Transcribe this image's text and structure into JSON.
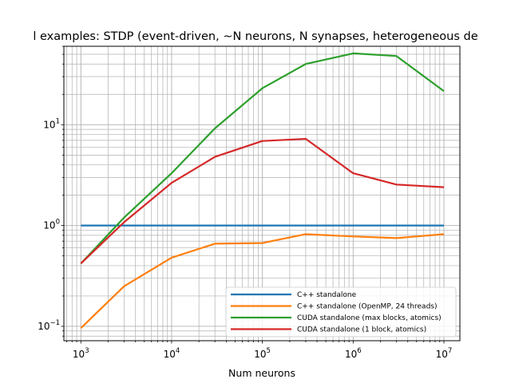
{
  "chart_data": {
    "type": "line",
    "title": "l examples: STDP (event-driven, ~N neurons, N synapses, heterogeneous de",
    "xlabel": "Num neurons",
    "ylabel": "",
    "xscale": "log",
    "yscale": "log",
    "xlim": [
      650,
      15000000
    ],
    "ylim": [
      0.072,
      60
    ],
    "grid": "on (major and minor)",
    "legend_position": "lower-right",
    "x_ticks": [
      {
        "base": "10",
        "exp": "3",
        "value": 1000
      },
      {
        "base": "10",
        "exp": "4",
        "value": 10000
      },
      {
        "base": "10",
        "exp": "5",
        "value": 100000
      },
      {
        "base": "10",
        "exp": "6",
        "value": 1000000
      },
      {
        "base": "10",
        "exp": "7",
        "value": 10000000
      }
    ],
    "y_ticks": [
      {
        "base": "10",
        "exp": "−1",
        "value": 0.1
      },
      {
        "base": "10",
        "exp": "0",
        "value": 1
      },
      {
        "base": "10",
        "exp": "1",
        "value": 10
      }
    ],
    "x": [
      1000,
      3000,
      10000,
      30000,
      100000,
      300000,
      1000000,
      3000000,
      10000000
    ],
    "series": [
      {
        "name": "C++ standalone",
        "color": "#1f77b4",
        "values": [
          1.0,
          1.0,
          1.0,
          1.0,
          1.0,
          1.0,
          1.0,
          1.0,
          1.0
        ]
      },
      {
        "name": "C++ standalone (OpenMP, 24 threads)",
        "color": "#ff7f0e",
        "values": [
          0.096,
          0.25,
          0.48,
          0.66,
          0.67,
          0.82,
          0.78,
          0.75,
          0.82
        ]
      },
      {
        "name": "CUDA standalone (max blocks, atomics)",
        "color": "#2ca02c",
        "values": [
          0.42,
          1.2,
          3.3,
          9.2,
          23.0,
          40.0,
          51.0,
          48.0,
          21.5
        ]
      },
      {
        "name": "CUDA standalone (1 block, atomics)",
        "color": "#d62728",
        "values": [
          0.42,
          1.08,
          2.65,
          4.8,
          6.9,
          7.25,
          3.3,
          2.55,
          2.4
        ]
      }
    ]
  }
}
